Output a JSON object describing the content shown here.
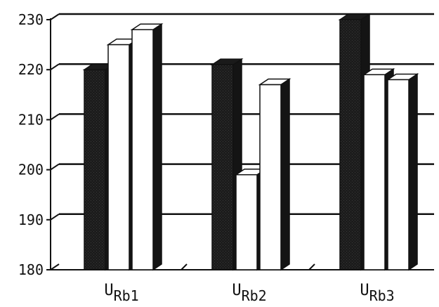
{
  "chart_data": {
    "type": "bar",
    "categories": [
      {
        "main": "U",
        "sub": "Rb1"
      },
      {
        "main": "U",
        "sub": "Rb2"
      },
      {
        "main": "U",
        "sub": "Rb3"
      }
    ],
    "series": [
      {
        "values": [
          220,
          221,
          230
        ],
        "color": "#1a1a1a"
      },
      {
        "values": [
          225,
          199,
          219
        ],
        "color": "#ffffff"
      },
      {
        "values": [
          228,
          217,
          218
        ],
        "color": "#ffffff"
      }
    ],
    "yticks": [
      180,
      190,
      200,
      210,
      220,
      230
    ],
    "ylim": [
      180,
      230
    ],
    "grid": true,
    "style": "3d"
  }
}
